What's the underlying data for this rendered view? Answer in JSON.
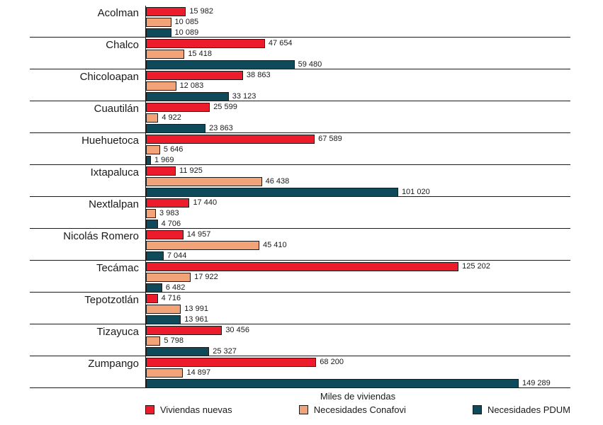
{
  "chart_data": {
    "type": "bar",
    "orientation": "horizontal",
    "title": "",
    "xlabel": "Miles de viviendas",
    "ylabel": "",
    "xlim": [
      0,
      170000
    ],
    "grid": "row-dividers",
    "legend_position": "bottom",
    "value_labels": true,
    "number_format": "space-thousands",
    "categories": [
      "Acolman",
      "Chalco",
      "Chicoloapan",
      "Cuautilán",
      "Huehuetoca",
      "Ixtapaluca",
      "Nextlalpan",
      "Nicolás Romero",
      "Tecámac",
      "Tepotzotlán",
      "Tizayuca",
      "Zumpango"
    ],
    "series": [
      {
        "name": "Viviendas nuevas",
        "color": "#EC1C2C",
        "values": [
          15982,
          47654,
          38863,
          25599,
          67589,
          11925,
          17440,
          14957,
          125202,
          4716,
          30456,
          68200
        ]
      },
      {
        "name": "Necesidades Conafovi",
        "color": "#F2A478",
        "values": [
          10085,
          15418,
          12083,
          4922,
          5646,
          46438,
          3983,
          45410,
          17922,
          13991,
          5798,
          14897
        ]
      },
      {
        "name": "Necesidades PDUM",
        "color": "#0F4A5B",
        "values": [
          10089,
          59480,
          33123,
          23863,
          1969,
          101020,
          4706,
          7044,
          6482,
          13961,
          25327,
          149289
        ]
      }
    ],
    "line_color": "#1a1a1a"
  }
}
